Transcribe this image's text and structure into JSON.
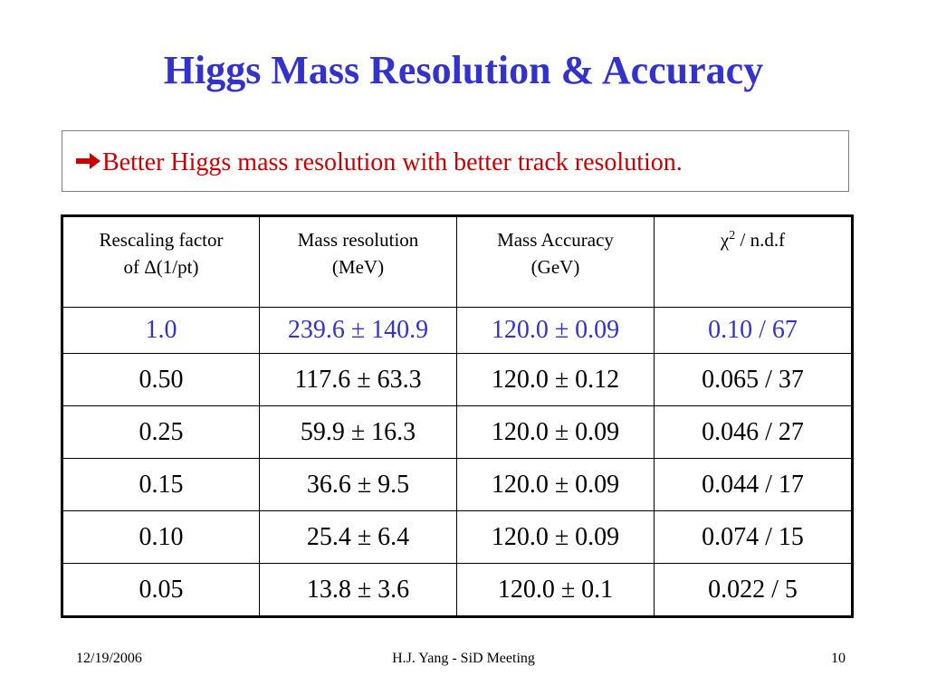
{
  "slide": {
    "title": "Higgs Mass Resolution & Accuracy",
    "bullet": {
      "icon": "right-arrow-icon",
      "text": "Better Higgs mass resolution with better track resolution.",
      "color": "#cc0000"
    },
    "title_color": "#3333cc"
  },
  "table": {
    "headers": [
      {
        "line1": "Rescaling factor",
        "line2": "of Δ(1/pt)"
      },
      {
        "line1": "Mass resolution",
        "line2": "(MeV)"
      },
      {
        "line1": "Mass Accuracy",
        "line2": "(GeV)"
      },
      {
        "chi": "χ",
        "sup": "2",
        "rest": " / n.d.f"
      }
    ],
    "highlight_color": "#3333cc",
    "rows": [
      {
        "factor": "1.0",
        "resolution": "239.6 ± 140.9",
        "accuracy": "120.0 ± 0.09",
        "chi2": "0.10 / 67"
      },
      {
        "factor": "0.50",
        "resolution": "117.6 ± 63.3",
        "accuracy": "120.0 ± 0.12",
        "chi2": "0.065 / 37"
      },
      {
        "factor": "0.25",
        "resolution": "59.9 ± 16.3",
        "accuracy": "120.0 ± 0.09",
        "chi2": "0.046 / 27"
      },
      {
        "factor": "0.15",
        "resolution": "36.6 ± 9.5",
        "accuracy": "120.0 ± 0.09",
        "chi2": "0.044 / 17"
      },
      {
        "factor": "0.10",
        "resolution": "25.4 ± 6.4",
        "accuracy": "120.0 ± 0.09",
        "chi2": "0.074 / 15"
      },
      {
        "factor": "0.05",
        "resolution": "13.8 ± 3.6",
        "accuracy": "120.0 ± 0.1",
        "chi2": "0.022 / 5"
      }
    ]
  },
  "footer": {
    "date": "12/19/2006",
    "center": "H.J. Yang - SiD Meeting",
    "page": "10"
  }
}
